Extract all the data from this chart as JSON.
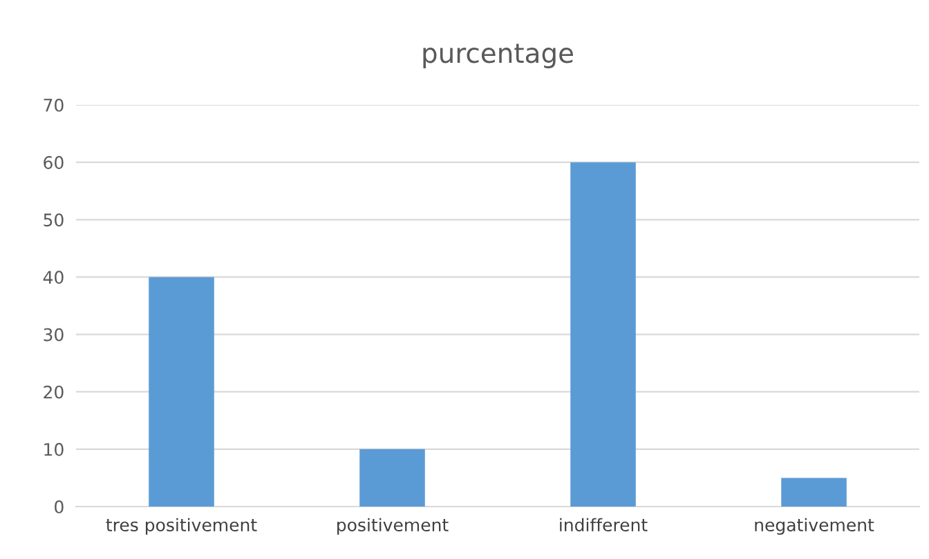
{
  "chart_data": {
    "type": "bar",
    "title": "purcentage",
    "categories": [
      "tres positivement",
      "positivement",
      "indifferent",
      "negativement"
    ],
    "values": [
      40,
      10,
      60,
      5
    ],
    "color": "#5b9bd5",
    "ylim": [
      0,
      70
    ],
    "yticks": [
      0,
      10,
      20,
      30,
      40,
      50,
      60,
      70
    ],
    "grid": "y"
  }
}
